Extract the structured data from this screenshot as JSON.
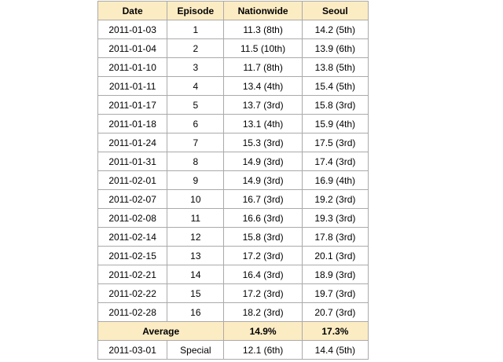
{
  "table": {
    "headers": [
      "Date",
      "Episode",
      "Nationwide",
      "Seoul"
    ],
    "rows": [
      [
        "2011-01-03",
        "1",
        "11.3 (8th)",
        "14.2 (5th)"
      ],
      [
        "2011-01-04",
        "2",
        "11.5 (10th)",
        "13.9 (6th)"
      ],
      [
        "2011-01-10",
        "3",
        "11.7 (8th)",
        "13.8 (5th)"
      ],
      [
        "2011-01-11",
        "4",
        "13.4 (4th)",
        "15.4 (5th)"
      ],
      [
        "2011-01-17",
        "5",
        "13.7 (3rd)",
        "15.8 (3rd)"
      ],
      [
        "2011-01-18",
        "6",
        "13.1 (4th)",
        "15.9 (4th)"
      ],
      [
        "2011-01-24",
        "7",
        "15.3 (3rd)",
        "17.5 (3rd)"
      ],
      [
        "2011-01-31",
        "8",
        "14.9 (3rd)",
        "17.4 (3rd)"
      ],
      [
        "2011-02-01",
        "9",
        "14.9 (3rd)",
        "16.9 (4th)"
      ],
      [
        "2011-02-07",
        "10",
        "16.7 (3rd)",
        "19.2 (3rd)"
      ],
      [
        "2011-02-08",
        "11",
        "16.6 (3rd)",
        "19.3 (3rd)"
      ],
      [
        "2011-02-14",
        "12",
        "15.8 (3rd)",
        "17.8 (3rd)"
      ],
      [
        "2011-02-15",
        "13",
        "17.2 (3rd)",
        "20.1 (3rd)"
      ],
      [
        "2011-02-21",
        "14",
        "16.4 (3rd)",
        "18.9 (3rd)"
      ],
      [
        "2011-02-22",
        "15",
        "17.2 (3rd)",
        "19.7 (3rd)"
      ],
      [
        "2011-02-28",
        "16",
        "18.2 (3rd)",
        "20.7 (3rd)"
      ]
    ],
    "average": {
      "label": "Average",
      "nationwide": "14.9%",
      "seoul": "17.3%"
    },
    "special": [
      "2011-03-01",
      "Special",
      "12.1 (6th)",
      "14.4 (5th)"
    ]
  },
  "colors": {
    "header_background": "#fcecc4",
    "border": "#aaaaaa"
  }
}
